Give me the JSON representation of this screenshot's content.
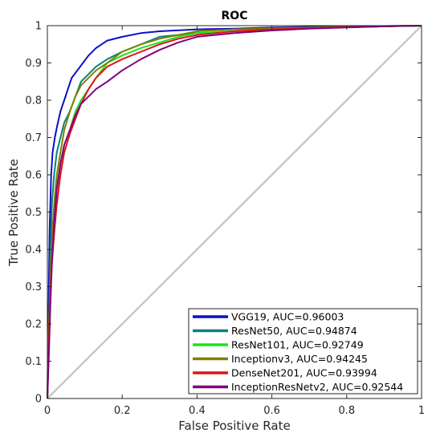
{
  "chart_data": {
    "type": "line",
    "title": "ROC",
    "xlabel": "False Positive Rate",
    "ylabel": "True Positive Rate",
    "xlim": [
      0,
      1
    ],
    "ylim": [
      0,
      1
    ],
    "xticks": [
      "0",
      "0.2",
      "0.4",
      "0.6",
      "0.8",
      "1"
    ],
    "yticks": [
      "0",
      "0.1",
      "0.2",
      "0.3",
      "0.4",
      "0.5",
      "0.6",
      "0.7",
      "0.8",
      "0.9",
      "1"
    ],
    "grid": false,
    "legend_position": "bottom-right",
    "diagonal": {
      "x": [
        0,
        1
      ],
      "y": [
        0,
        1
      ],
      "color": "#c8c8c8"
    },
    "series": [
      {
        "name": "VGG19, AUC=0.96003",
        "color": "#0a10c8",
        "x": [
          0,
          0.003,
          0.006,
          0.01,
          0.014,
          0.02,
          0.026,
          0.035,
          0.045,
          0.055,
          0.065,
          0.08,
          0.095,
          0.11,
          0.13,
          0.16,
          0.2,
          0.25,
          0.3,
          0.4,
          0.5,
          0.6,
          0.7,
          0.8,
          0.9,
          1
        ],
        "y": [
          0,
          0.23,
          0.45,
          0.6,
          0.66,
          0.7,
          0.73,
          0.77,
          0.8,
          0.83,
          0.86,
          0.88,
          0.9,
          0.92,
          0.94,
          0.96,
          0.97,
          0.98,
          0.985,
          0.99,
          0.992,
          0.995,
          0.997,
          0.998,
          0.999,
          1
        ]
      },
      {
        "name": "ResNet50, AUC=0.94874",
        "color": "#0a8080",
        "x": [
          0,
          0.004,
          0.008,
          0.012,
          0.018,
          0.025,
          0.035,
          0.045,
          0.06,
          0.075,
          0.09,
          0.11,
          0.13,
          0.16,
          0.2,
          0.25,
          0.3,
          0.35,
          0.4,
          0.5,
          0.6,
          0.7,
          0.8,
          0.9,
          1
        ],
        "y": [
          0,
          0.17,
          0.38,
          0.52,
          0.6,
          0.66,
          0.7,
          0.74,
          0.77,
          0.81,
          0.85,
          0.87,
          0.89,
          0.91,
          0.93,
          0.95,
          0.97,
          0.975,
          0.98,
          0.985,
          0.99,
          0.993,
          0.996,
          0.998,
          1
        ]
      },
      {
        "name": "ResNet101, AUC=0.92749",
        "color": "#19e619",
        "x": [
          0,
          0.004,
          0.008,
          0.012,
          0.018,
          0.025,
          0.035,
          0.045,
          0.06,
          0.075,
          0.09,
          0.11,
          0.13,
          0.16,
          0.2,
          0.25,
          0.3,
          0.35,
          0.4,
          0.5,
          0.6,
          0.7,
          0.8,
          0.9,
          1
        ],
        "y": [
          0,
          0.17,
          0.3,
          0.4,
          0.5,
          0.57,
          0.63,
          0.68,
          0.72,
          0.77,
          0.8,
          0.83,
          0.86,
          0.9,
          0.92,
          0.94,
          0.955,
          0.97,
          0.98,
          0.985,
          0.99,
          0.993,
          0.996,
          0.998,
          1
        ]
      },
      {
        "name": "Inceptionv3, AUC=0.94245",
        "color": "#808000",
        "x": [
          0,
          0.004,
          0.008,
          0.012,
          0.018,
          0.025,
          0.035,
          0.045,
          0.06,
          0.075,
          0.09,
          0.11,
          0.13,
          0.16,
          0.2,
          0.25,
          0.3,
          0.35,
          0.4,
          0.5,
          0.6,
          0.7,
          0.8,
          0.9,
          1
        ],
        "y": [
          0,
          0.2,
          0.33,
          0.42,
          0.52,
          0.6,
          0.66,
          0.72,
          0.77,
          0.81,
          0.84,
          0.86,
          0.88,
          0.9,
          0.93,
          0.95,
          0.965,
          0.975,
          0.985,
          0.99,
          0.993,
          0.995,
          0.997,
          0.999,
          1
        ]
      },
      {
        "name": "DenseNet201, AUC=0.93994",
        "color": "#e01414",
        "x": [
          0,
          0.004,
          0.008,
          0.012,
          0.018,
          0.025,
          0.035,
          0.045,
          0.06,
          0.075,
          0.09,
          0.11,
          0.13,
          0.16,
          0.2,
          0.25,
          0.3,
          0.35,
          0.4,
          0.5,
          0.6,
          0.7,
          0.8,
          0.9,
          1
        ],
        "y": [
          0,
          0.15,
          0.28,
          0.36,
          0.44,
          0.52,
          0.6,
          0.66,
          0.71,
          0.75,
          0.79,
          0.83,
          0.86,
          0.89,
          0.91,
          0.93,
          0.95,
          0.965,
          0.975,
          0.985,
          0.99,
          0.993,
          0.996,
          0.998,
          1
        ]
      },
      {
        "name": "InceptionResNetv2, AUC=0.92544",
        "color": "#800080",
        "x": [
          0,
          0.004,
          0.008,
          0.012,
          0.018,
          0.025,
          0.035,
          0.045,
          0.06,
          0.075,
          0.09,
          0.11,
          0.13,
          0.16,
          0.2,
          0.25,
          0.3,
          0.35,
          0.4,
          0.5,
          0.6,
          0.7,
          0.8,
          0.9,
          1
        ],
        "y": [
          0,
          0.12,
          0.25,
          0.36,
          0.47,
          0.56,
          0.63,
          0.68,
          0.72,
          0.76,
          0.79,
          0.81,
          0.83,
          0.85,
          0.88,
          0.91,
          0.935,
          0.955,
          0.97,
          0.98,
          0.987,
          0.992,
          0.995,
          0.998,
          1
        ]
      }
    ]
  }
}
